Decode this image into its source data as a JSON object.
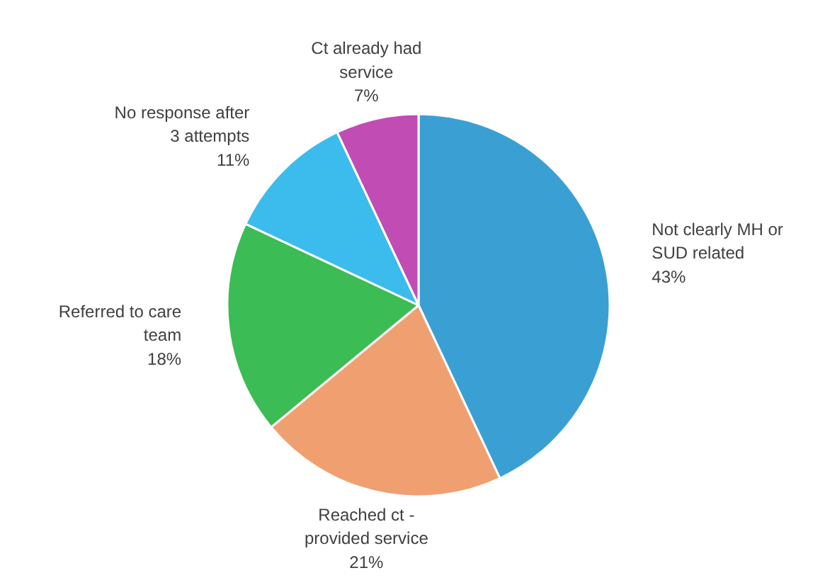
{
  "chart_data": {
    "type": "pie",
    "categories": [
      "Not clearly MH or SUD related",
      "Reached ct - provided service",
      "Referred to care team",
      "No response after 3 attempts",
      "Ct already had service"
    ],
    "values": [
      43,
      21,
      18,
      11,
      7
    ],
    "colors": [
      "#3aa0d4",
      "#f0a070",
      "#3cbc54",
      "#3cbcec",
      "#c04cb4"
    ],
    "value_labels": [
      "43%",
      "21%",
      "18%",
      "11%",
      "7%"
    ],
    "legend": false
  }
}
